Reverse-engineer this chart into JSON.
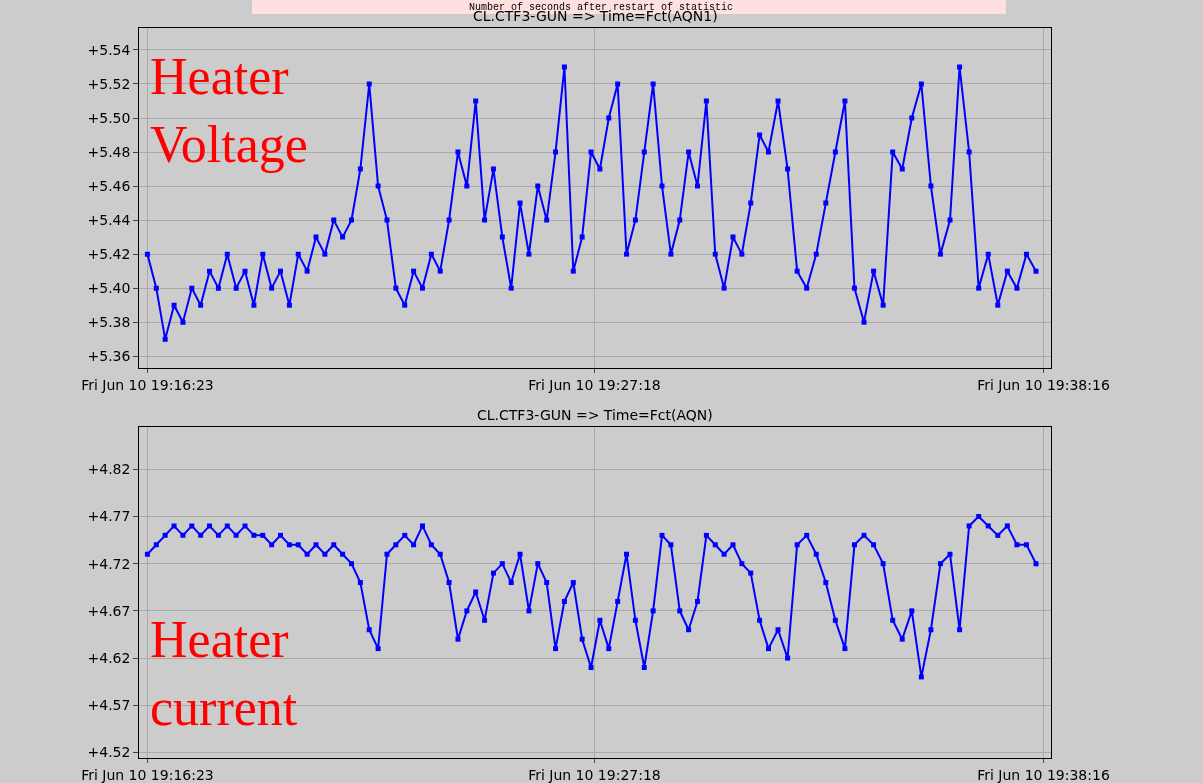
{
  "chart_data": [
    {
      "type": "line",
      "title": "CL.CTF3-GUN => Time=Fct(AQN1)",
      "subtitle": "Number of seconds after restart of statistic",
      "annotations": [
        "Heater Voltage"
      ],
      "x": [
        "--06-10T19:16:23",
        "--06-10T19:16:36",
        "--06-10T19:16:49",
        "--06-10T19:17:02",
        "--06-10T19:17:15",
        "--06-10T19:17:28",
        "--06-10T19:17:41",
        "--06-10T19:17:54",
        "--06-10T19:18:07",
        "--06-10T19:18:20",
        "--06-10T19:18:33",
        "--06-10T19:18:46",
        "--06-10T19:18:59",
        "--06-10T19:19:12",
        "--06-10T19:19:25",
        "--06-10T19:19:38",
        "--06-10T19:19:51",
        "--06-10T19:20:04",
        "--06-10T19:20:17",
        "--06-10T19:20:30",
        "--06-10T19:20:43",
        "--06-10T19:20:56",
        "--06-10T19:21:09",
        "--06-10T19:21:22",
        "--06-10T19:21:35",
        "--06-10T19:21:48",
        "--06-10T19:22:01",
        "--06-10T19:22:14",
        "--06-10T19:22:27",
        "--06-10T19:22:40",
        "--06-10T19:22:53",
        "--06-10T19:23:06",
        "--06-10T19:23:19",
        "--06-10T19:23:32",
        "--06-10T19:23:45",
        "--06-10T19:23:58",
        "--06-10T19:24:11",
        "--06-10T19:24:24",
        "--06-10T19:24:37",
        "--06-10T19:24:50",
        "--06-10T19:25:03",
        "--06-10T19:25:16",
        "--06-10T19:25:29",
        "--06-10T19:25:42",
        "--06-10T19:25:55",
        "--06-10T19:26:08",
        "--06-10T19:26:21",
        "--06-10T19:26:34",
        "--06-10T19:26:47",
        "--06-10T19:27:00",
        "--06-10T19:27:13",
        "--06-10T19:27:26",
        "--06-10T19:27:39",
        "--06-10T19:27:52",
        "--06-10T19:28:05",
        "--06-10T19:28:18",
        "--06-10T19:28:31",
        "--06-10T19:28:44",
        "--06-10T19:28:57",
        "--06-10T19:29:10",
        "--06-10T19:29:23",
        "--06-10T19:29:36",
        "--06-10T19:29:49",
        "--06-10T19:30:02",
        "--06-10T19:30:15",
        "--06-10T19:30:28",
        "--06-10T19:30:41",
        "--06-10T19:30:54",
        "--06-10T19:31:07",
        "--06-10T19:31:20",
        "--06-10T19:31:33",
        "--06-10T19:31:47",
        "--06-10T19:32:01",
        "--06-10T19:32:15",
        "--06-10T19:32:29",
        "--06-10T19:32:43",
        "--06-10T19:32:57",
        "--06-10T19:33:11",
        "--06-10T19:33:25",
        "--06-10T19:33:39",
        "--06-10T19:33:53",
        "--06-10T19:34:07",
        "--06-10T19:34:21",
        "--06-10T19:34:35",
        "--06-10T19:34:49",
        "--06-10T19:35:03",
        "--06-10T19:35:17",
        "--06-10T19:35:31",
        "--06-10T19:35:45",
        "--06-10T19:35:59",
        "--06-10T19:36:13",
        "--06-10T19:36:27",
        "--06-10T19:36:41",
        "--06-10T19:36:55",
        "--06-10T19:37:09",
        "--06-10T19:37:23",
        "--06-10T19:37:37",
        "--06-10T19:37:51",
        "--06-10T19:38:05"
      ],
      "series": [
        {
          "color": "#0000ff",
          "values": [
            5.42,
            5.4,
            5.37,
            5.39,
            5.38,
            5.4,
            5.39,
            5.41,
            5.4,
            5.42,
            5.4,
            5.41,
            5.39,
            5.42,
            5.4,
            5.41,
            5.39,
            5.42,
            5.41,
            5.43,
            5.42,
            5.44,
            5.43,
            5.44,
            5.47,
            5.52,
            5.46,
            5.44,
            5.4,
            5.39,
            5.41,
            5.4,
            5.42,
            5.41,
            5.44,
            5.48,
            5.46,
            5.51,
            5.44,
            5.47,
            5.43,
            5.4,
            5.45,
            5.42,
            5.46,
            5.44,
            5.48,
            5.53,
            5.41,
            5.43,
            5.48,
            5.47,
            5.5,
            5.52,
            5.42,
            5.44,
            5.48,
            5.52,
            5.46,
            5.42,
            5.44,
            5.48,
            5.46,
            5.51,
            5.42,
            5.4,
            5.43,
            5.42,
            5.45,
            5.49,
            5.48,
            5.51,
            5.47,
            5.41,
            5.4,
            5.42,
            5.45,
            5.48,
            5.51,
            5.4,
            5.38,
            5.41,
            5.39,
            5.48,
            5.47,
            5.5,
            5.52,
            5.46,
            5.42,
            5.44,
            5.53,
            5.48,
            5.4,
            5.42,
            5.39,
            5.41,
            5.4,
            5.42,
            5.41
          ]
        }
      ],
      "xlim": [
        "--06-10T19:16:11",
        "--06-10T19:38:27"
      ],
      "ylim": [
        5.353,
        5.553
      ],
      "xticks": [
        {
          "value": "--06-10T19:16:23",
          "label": "Fri Jun 10 19:16:23"
        },
        {
          "value": "--06-10T19:27:18",
          "label": "Fri Jun 10 19:27:18"
        },
        {
          "value": "--06-10T19:38:16",
          "label": "Fri Jun 10 19:38:16"
        }
      ],
      "yticks": [
        {
          "value": 5.36,
          "label": "+5.36"
        },
        {
          "value": 5.38,
          "label": "+5.38"
        },
        {
          "value": 5.4,
          "label": "+5.40"
        },
        {
          "value": 5.42,
          "label": "+5.42"
        },
        {
          "value": 5.44,
          "label": "+5.44"
        },
        {
          "value": 5.46,
          "label": "+5.46"
        },
        {
          "value": 5.48,
          "label": "+5.48"
        },
        {
          "value": 5.5,
          "label": "+5.50"
        },
        {
          "value": 5.52,
          "label": "+5.52"
        },
        {
          "value": 5.54,
          "label": "+5.54"
        }
      ],
      "grid": true,
      "marker": "square",
      "line_style": "solid"
    },
    {
      "type": "line",
      "title": "CL.CTF3-GUN => Time=Fct(AQN)",
      "annotations": [
        "Heater current"
      ],
      "x": [
        "--06-10T19:16:23",
        "--06-10T19:16:36",
        "--06-10T19:16:49",
        "--06-10T19:17:02",
        "--06-10T19:17:15",
        "--06-10T19:17:28",
        "--06-10T19:17:41",
        "--06-10T19:17:54",
        "--06-10T19:18:07",
        "--06-10T19:18:20",
        "--06-10T19:18:33",
        "--06-10T19:18:46",
        "--06-10T19:18:59",
        "--06-10T19:19:12",
        "--06-10T19:19:25",
        "--06-10T19:19:38",
        "--06-10T19:19:51",
        "--06-10T19:20:04",
        "--06-10T19:20:17",
        "--06-10T19:20:30",
        "--06-10T19:20:43",
        "--06-10T19:20:56",
        "--06-10T19:21:09",
        "--06-10T19:21:22",
        "--06-10T19:21:35",
        "--06-10T19:21:48",
        "--06-10T19:22:01",
        "--06-10T19:22:14",
        "--06-10T19:22:27",
        "--06-10T19:22:40",
        "--06-10T19:22:53",
        "--06-10T19:23:06",
        "--06-10T19:23:19",
        "--06-10T19:23:32",
        "--06-10T19:23:45",
        "--06-10T19:23:58",
        "--06-10T19:24:11",
        "--06-10T19:24:24",
        "--06-10T19:24:37",
        "--06-10T19:24:50",
        "--06-10T19:25:03",
        "--06-10T19:25:16",
        "--06-10T19:25:29",
        "--06-10T19:25:42",
        "--06-10T19:25:55",
        "--06-10T19:26:08",
        "--06-10T19:26:21",
        "--06-10T19:26:34",
        "--06-10T19:26:47",
        "--06-10T19:27:00",
        "--06-10T19:27:13",
        "--06-10T19:27:26",
        "--06-10T19:27:39",
        "--06-10T19:27:52",
        "--06-10T19:28:05",
        "--06-10T19:28:18",
        "--06-10T19:28:31",
        "--06-10T19:28:44",
        "--06-10T19:28:57",
        "--06-10T19:29:10",
        "--06-10T19:29:23",
        "--06-10T19:29:36",
        "--06-10T19:29:49",
        "--06-10T19:30:02",
        "--06-10T19:30:15",
        "--06-10T19:30:28",
        "--06-10T19:30:41",
        "--06-10T19:30:54",
        "--06-10T19:31:07",
        "--06-10T19:31:20",
        "--06-10T19:31:33",
        "--06-10T19:31:47",
        "--06-10T19:32:01",
        "--06-10T19:32:15",
        "--06-10T19:32:29",
        "--06-10T19:32:43",
        "--06-10T19:32:57",
        "--06-10T19:33:11",
        "--06-10T19:33:25",
        "--06-10T19:33:39",
        "--06-10T19:33:53",
        "--06-10T19:34:07",
        "--06-10T19:34:21",
        "--06-10T19:34:35",
        "--06-10T19:34:49",
        "--06-10T19:35:03",
        "--06-10T19:35:17",
        "--06-10T19:35:31",
        "--06-10T19:35:45",
        "--06-10T19:35:59",
        "--06-10T19:36:13",
        "--06-10T19:36:27",
        "--06-10T19:36:41",
        "--06-10T19:36:55",
        "--06-10T19:37:09",
        "--06-10T19:37:23",
        "--06-10T19:37:37",
        "--06-10T19:37:51",
        "--06-10T19:38:05"
      ],
      "series": [
        {
          "color": "#0000ff",
          "values": [
            4.73,
            4.74,
            4.75,
            4.76,
            4.75,
            4.76,
            4.75,
            4.76,
            4.75,
            4.76,
            4.75,
            4.76,
            4.75,
            4.75,
            4.74,
            4.75,
            4.74,
            4.74,
            4.73,
            4.74,
            4.73,
            4.74,
            4.73,
            4.72,
            4.7,
            4.65,
            4.63,
            4.73,
            4.74,
            4.75,
            4.74,
            4.76,
            4.74,
            4.73,
            4.7,
            4.64,
            4.67,
            4.69,
            4.66,
            4.71,
            4.72,
            4.7,
            4.73,
            4.67,
            4.72,
            4.7,
            4.63,
            4.68,
            4.7,
            4.64,
            4.61,
            4.66,
            4.63,
            4.68,
            4.73,
            4.66,
            4.61,
            4.67,
            4.75,
            4.74,
            4.67,
            4.65,
            4.68,
            4.75,
            4.74,
            4.73,
            4.74,
            4.72,
            4.71,
            4.66,
            4.63,
            4.65,
            4.62,
            4.74,
            4.75,
            4.73,
            4.7,
            4.66,
            4.63,
            4.74,
            4.75,
            4.74,
            4.72,
            4.66,
            4.64,
            4.67,
            4.6,
            4.65,
            4.72,
            4.73,
            4.65,
            4.76,
            4.77,
            4.76,
            4.75,
            4.76,
            4.74,
            4.74,
            4.72
          ]
        }
      ],
      "xlim": [
        "--06-10T19:16:11",
        "--06-10T19:38:27"
      ],
      "ylim": [
        4.514,
        4.865
      ],
      "xticks": [
        {
          "value": "--06-10T19:16:23",
          "label": "Fri Jun 10 19:16:23"
        },
        {
          "value": "--06-10T19:27:18",
          "label": "Fri Jun 10 19:27:18"
        },
        {
          "value": "--06-10T19:38:16",
          "label": "Fri Jun 10 19:38:16"
        }
      ],
      "yticks": [
        {
          "value": 4.52,
          "label": "+4.52"
        },
        {
          "value": 4.57,
          "label": "+4.57"
        },
        {
          "value": 4.62,
          "label": "+4.62"
        },
        {
          "value": 4.67,
          "label": "+4.67"
        },
        {
          "value": 4.72,
          "label": "+4.72"
        },
        {
          "value": 4.77,
          "label": "+4.77"
        },
        {
          "value": 4.82,
          "label": "+4.82"
        }
      ],
      "grid": true,
      "marker": "square",
      "line_style": "solid"
    }
  ]
}
